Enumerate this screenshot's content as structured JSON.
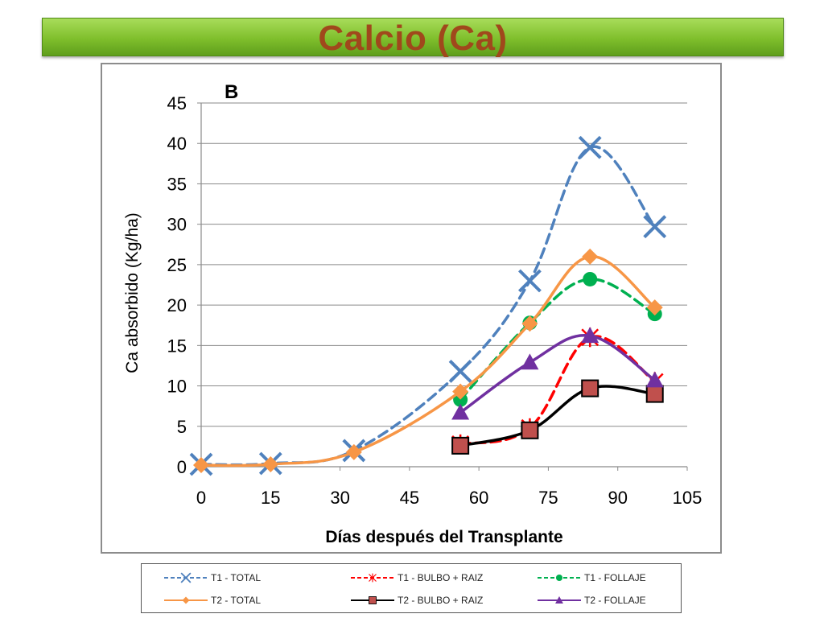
{
  "page": {
    "title": "Calcio (Ca)"
  },
  "chart_data": {
    "type": "line",
    "panel_label": "B",
    "xlabel": "Días después del Transplante",
    "ylabel": "Ca absorbido (Kg/ha)",
    "xlim": [
      0,
      105
    ],
    "ylim": [
      0,
      45
    ],
    "xticks": [
      0,
      15,
      30,
      45,
      60,
      75,
      90,
      105
    ],
    "yticks": [
      0,
      5,
      10,
      15,
      20,
      25,
      30,
      35,
      40,
      45
    ],
    "grid": "horizontal",
    "legend_position": "bottom",
    "series": [
      {
        "name": "T1 - TOTAL",
        "color": "#4f81bd",
        "dash": "dashed",
        "marker": "x",
        "x": [
          0,
          15,
          33,
          56,
          71,
          84,
          98
        ],
        "y": [
          0.3,
          0.4,
          2.0,
          11.8,
          23.0,
          39.5,
          29.7
        ]
      },
      {
        "name": "T1 - BULBO + RAIZ",
        "color": "#ff0000",
        "dash": "dashed",
        "marker": "asterisk",
        "x": [
          56,
          71,
          84,
          98
        ],
        "y": [
          2.8,
          4.8,
          16.0,
          10.5
        ]
      },
      {
        "name": "T1 - FOLLAJE",
        "color": "#00b050",
        "dash": "dashed",
        "marker": "circle",
        "x": [
          56,
          71,
          84,
          98
        ],
        "y": [
          8.3,
          17.8,
          23.2,
          18.9
        ]
      },
      {
        "name": "T2 - TOTAL",
        "color": "#f79646",
        "dash": "solid",
        "marker": "diamond",
        "x": [
          0,
          15,
          33,
          56,
          71,
          84,
          98
        ],
        "y": [
          0.2,
          0.3,
          1.8,
          9.3,
          17.7,
          26.0,
          19.7
        ]
      },
      {
        "name": "T2 - BULBO + RAIZ",
        "color": "#000000",
        "dash": "solid",
        "marker": "square",
        "markerFill": "#c0504d",
        "x": [
          56,
          71,
          84,
          98
        ],
        "y": [
          2.6,
          4.5,
          9.7,
          9.0
        ]
      },
      {
        "name": "T2 - FOLLAJE",
        "color": "#7030a0",
        "dash": "solid",
        "marker": "triangle",
        "x": [
          56,
          71,
          84,
          98
        ],
        "y": [
          6.7,
          12.9,
          16.2,
          10.7
        ]
      }
    ]
  }
}
